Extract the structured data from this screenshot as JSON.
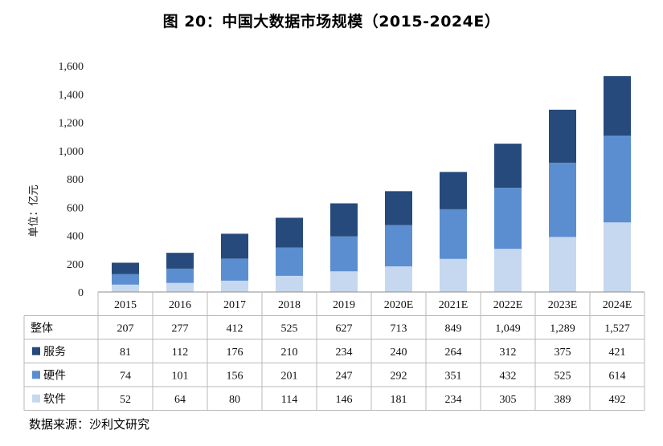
{
  "title": "图  20：中国大数据市场规模（2015-2024E）",
  "source": "数据来源：沙利文研究",
  "colors": {
    "服务": "#264a7b",
    "硬件": "#5b8ed0",
    "软件": "#c6d8ef"
  },
  "chart_data": {
    "type": "bar",
    "stacked": true,
    "title": "图  20：中国大数据市场规模（2015-2024E）",
    "ylabel": "单位：亿元",
    "ylim": [
      0,
      1600
    ],
    "yticks": [
      0,
      200,
      400,
      600,
      800,
      1000,
      1200,
      1400,
      1600
    ],
    "ytick_labels": [
      "0",
      "200",
      "400",
      "600",
      "800",
      "1,000",
      "1,200",
      "1,400",
      "1,600"
    ],
    "grid": false,
    "categories": [
      "2015",
      "2016",
      "2017",
      "2018",
      "2019",
      "2020E",
      "2021E",
      "2022E",
      "2023E",
      "2024E"
    ],
    "total": {
      "name": "整体",
      "values": [
        207,
        277,
        412,
        525,
        627,
        713,
        849,
        1049,
        1289,
        1527
      ],
      "labels": [
        "207",
        "277",
        "412",
        "525",
        "627",
        "713",
        "849",
        "1,049",
        "1,289",
        "1,527"
      ]
    },
    "series": [
      {
        "name": "软件",
        "values": [
          52,
          64,
          80,
          114,
          146,
          181,
          234,
          305,
          389,
          492
        ]
      },
      {
        "name": "硬件",
        "values": [
          74,
          101,
          156,
          201,
          247,
          292,
          351,
          432,
          525,
          614
        ]
      },
      {
        "name": "服务",
        "values": [
          81,
          112,
          176,
          210,
          234,
          240,
          264,
          312,
          375,
          421
        ]
      }
    ],
    "table_row_order": [
      "整体",
      "服务",
      "硬件",
      "软件"
    ]
  }
}
